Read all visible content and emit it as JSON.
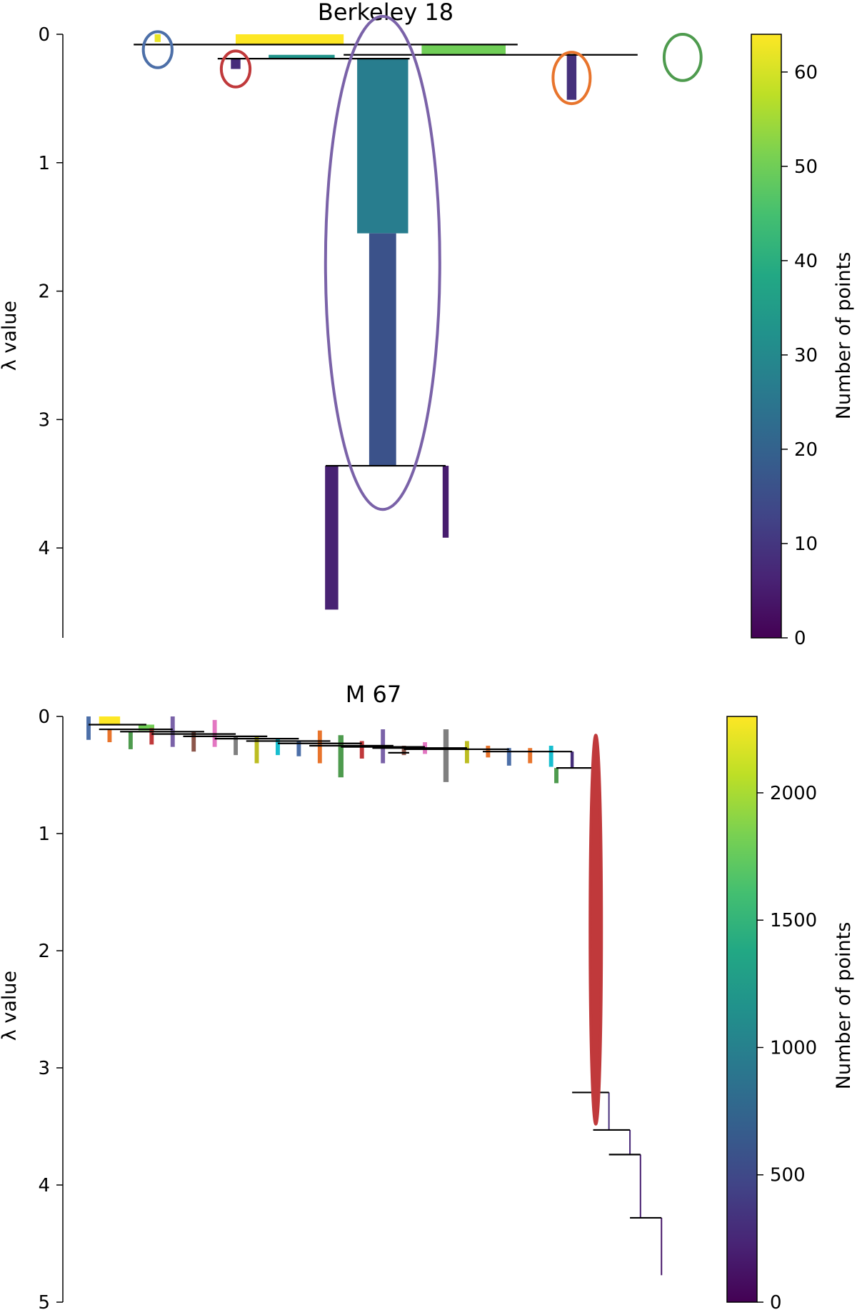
{
  "chart_data": [
    {
      "type": "condensed-tree",
      "title": "Berkeley 18",
      "ylabel": "λ value",
      "ylim": [
        0,
        4.7
      ],
      "yticks": [
        0,
        1,
        2,
        3,
        4
      ],
      "y_inverted": true,
      "colorbar": {
        "label": "Number of points",
        "range": [
          0,
          64
        ],
        "ticks": [
          0,
          10,
          20,
          30,
          40,
          50,
          60
        ],
        "colormap": "viridis"
      },
      "splits": [
        {
          "lambda": 0.08,
          "x_from": 0.08,
          "x_to": 0.72
        },
        {
          "lambda": 0.16,
          "x_from": 0.43,
          "x_to": 0.92
        },
        {
          "lambda": 0.19,
          "x_from": 0.22,
          "x_to": 0.54
        },
        {
          "lambda": 3.36,
          "x_from": 0.4,
          "x_to": 0.6
        }
      ],
      "branches": [
        {
          "x": 0.12,
          "lambda_start": 0.0,
          "lambda_end": 0.06,
          "points": 62,
          "width": 0.01
        },
        {
          "x": 0.34,
          "lambda_start": 0.0,
          "lambda_end": 0.08,
          "points": 64,
          "width": 0.18
        },
        {
          "x": 0.63,
          "lambda_start": 0.08,
          "lambda_end": 0.16,
          "points": 50,
          "width": 0.14
        },
        {
          "x": 0.36,
          "lambda_start": 0.16,
          "lambda_end": 0.19,
          "points": 33,
          "width": 0.11
        },
        {
          "x": 0.25,
          "lambda_start": 0.19,
          "lambda_end": 0.27,
          "points": 8,
          "width": 0.016
        },
        {
          "x": 0.495,
          "lambda_start": 0.19,
          "lambda_end": 1.55,
          "points": 27,
          "width": 0.085
        },
        {
          "x": 0.495,
          "lambda_start": 1.55,
          "lambda_end": 3.36,
          "points": 16,
          "width": 0.045
        },
        {
          "x": 0.81,
          "lambda_start": 0.16,
          "lambda_end": 0.51,
          "points": 9,
          "width": 0.016
        },
        {
          "x": 0.41,
          "lambda_start": 3.36,
          "lambda_end": 4.48,
          "points": 6,
          "width": 0.022
        },
        {
          "x": 0.6,
          "lambda_start": 3.36,
          "lambda_end": 3.92,
          "points": 5,
          "width": 0.01
        }
      ],
      "selected_clusters": [
        {
          "color": "#4c6fa8",
          "x": 0.12,
          "lambda_center": 0.12,
          "lambda_half_span": 0.14
        },
        {
          "color": "#c0393b",
          "x": 0.25,
          "lambda_center": 0.27,
          "lambda_half_span": 0.14
        },
        {
          "color": "#7a62a8",
          "x": 0.495,
          "lambda_center": 1.78,
          "lambda_half_span": 1.92
        },
        {
          "color": "#e8742c",
          "x": 0.81,
          "lambda_center": 0.34,
          "lambda_half_span": 0.2
        },
        {
          "color": "#4e9b4e",
          "x": 0.995,
          "lambda_center": 0.18,
          "lambda_half_span": 0.18
        }
      ]
    },
    {
      "type": "condensed-tree",
      "title": "M 67",
      "ylabel": "λ value",
      "ylim": [
        0,
        5
      ],
      "yticks": [
        0,
        1,
        2,
        3,
        4,
        5
      ],
      "y_inverted": true,
      "colorbar": {
        "label": "Number of points",
        "range": [
          0,
          2300
        ],
        "ticks": [
          0,
          500,
          1000,
          1500,
          2000
        ],
        "colormap": "viridis"
      },
      "splits": [
        {
          "lambda": 0.07,
          "x_from": 0.0,
          "x_to": 0.11
        },
        {
          "lambda": 0.11,
          "x_from": 0.02,
          "x_to": 0.16
        },
        {
          "lambda": 0.13,
          "x_from": 0.06,
          "x_to": 0.22
        },
        {
          "lambda": 0.15,
          "x_from": 0.12,
          "x_to": 0.28
        },
        {
          "lambda": 0.17,
          "x_from": 0.18,
          "x_to": 0.34
        },
        {
          "lambda": 0.19,
          "x_from": 0.24,
          "x_to": 0.4
        },
        {
          "lambda": 0.21,
          "x_from": 0.3,
          "x_to": 0.46
        },
        {
          "lambda": 0.23,
          "x_from": 0.36,
          "x_to": 0.52
        },
        {
          "lambda": 0.25,
          "x_from": 0.42,
          "x_to": 0.58
        },
        {
          "lambda": 0.26,
          "x_from": 0.48,
          "x_to": 0.64
        },
        {
          "lambda": 0.27,
          "x_from": 0.54,
          "x_to": 0.72
        },
        {
          "lambda": 0.28,
          "x_from": 0.6,
          "x_to": 0.8
        },
        {
          "lambda": 0.31,
          "x_from": 0.57,
          "x_to": 0.61
        },
        {
          "lambda": 0.3,
          "x_from": 0.75,
          "x_to": 0.92
        },
        {
          "lambda": 0.44,
          "x_from": 0.89,
          "x_to": 0.96
        },
        {
          "lambda": 3.21,
          "x_from": 0.92,
          "x_to": 0.99
        },
        {
          "lambda": 3.53,
          "x_from": 0.96,
          "x_to": 1.03
        },
        {
          "lambda": 3.74,
          "x_from": 0.99,
          "x_to": 1.05
        },
        {
          "lambda": 4.28,
          "x_from": 1.03,
          "x_to": 1.09
        }
      ],
      "branches": [
        {
          "x": 0.0,
          "lambda_start": 0.0,
          "lambda_end": 0.2,
          "points": 500,
          "width": 0.008,
          "color": "#4c6fa8"
        },
        {
          "x": 0.04,
          "lambda_start": 0.0,
          "lambda_end": 0.07,
          "points": 2300,
          "width": 0.04
        },
        {
          "x": 0.04,
          "lambda_start": 0.11,
          "lambda_end": 0.22,
          "points": 60,
          "width": 0.008,
          "color": "#e8742c"
        },
        {
          "x": 0.08,
          "lambda_start": 0.13,
          "lambda_end": 0.28,
          "points": 60,
          "width": 0.008,
          "color": "#4e9b4e"
        },
        {
          "x": 0.11,
          "lambda_start": 0.07,
          "lambda_end": 0.12,
          "points": 1800,
          "width": 0.03
        },
        {
          "x": 0.12,
          "lambda_start": 0.1,
          "lambda_end": 0.24,
          "points": 60,
          "width": 0.008,
          "color": "#c0393b"
        },
        {
          "x": 0.16,
          "lambda_start": 0.0,
          "lambda_end": 0.26,
          "points": 60,
          "width": 0.008,
          "color": "#7a62a8"
        },
        {
          "x": 0.2,
          "lambda_start": 0.13,
          "lambda_end": 0.3,
          "points": 60,
          "width": 0.008,
          "color": "#8c564b"
        },
        {
          "x": 0.24,
          "lambda_start": 0.03,
          "lambda_end": 0.26,
          "points": 60,
          "width": 0.008,
          "color": "#e377c2"
        },
        {
          "x": 0.28,
          "lambda_start": 0.17,
          "lambda_end": 0.33,
          "points": 60,
          "width": 0.008,
          "color": "#7f7f7f"
        },
        {
          "x": 0.32,
          "lambda_start": 0.17,
          "lambda_end": 0.4,
          "points": 60,
          "width": 0.008,
          "color": "#bcbd22"
        },
        {
          "x": 0.36,
          "lambda_start": 0.19,
          "lambda_end": 0.33,
          "points": 60,
          "width": 0.008,
          "color": "#17becf"
        },
        {
          "x": 0.4,
          "lambda_start": 0.21,
          "lambda_end": 0.34,
          "points": 60,
          "width": 0.008,
          "color": "#4c6fa8"
        },
        {
          "x": 0.44,
          "lambda_start": 0.12,
          "lambda_end": 0.4,
          "points": 60,
          "width": 0.008,
          "color": "#e8742c"
        },
        {
          "x": 0.48,
          "lambda_start": 0.16,
          "lambda_end": 0.52,
          "points": 60,
          "width": 0.01,
          "color": "#4e9b4e"
        },
        {
          "x": 0.52,
          "lambda_start": 0.21,
          "lambda_end": 0.36,
          "points": 60,
          "width": 0.008,
          "color": "#c0393b"
        },
        {
          "x": 0.56,
          "lambda_start": 0.11,
          "lambda_end": 0.4,
          "points": 60,
          "width": 0.008,
          "color": "#7a62a8"
        },
        {
          "x": 0.6,
          "lambda_start": 0.25,
          "lambda_end": 0.33,
          "points": 60,
          "width": 0.008,
          "color": "#8c564b"
        },
        {
          "x": 0.64,
          "lambda_start": 0.22,
          "lambda_end": 0.32,
          "points": 60,
          "width": 0.008,
          "color": "#e377c2"
        },
        {
          "x": 0.68,
          "lambda_start": 0.11,
          "lambda_end": 0.56,
          "points": 60,
          "width": 0.01,
          "color": "#7f7f7f"
        },
        {
          "x": 0.72,
          "lambda_start": 0.21,
          "lambda_end": 0.4,
          "points": 60,
          "width": 0.008,
          "color": "#bcbd22"
        },
        {
          "x": 0.76,
          "lambda_start": 0.25,
          "lambda_end": 0.35,
          "points": 60,
          "width": 0.008,
          "color": "#e8742c"
        },
        {
          "x": 0.8,
          "lambda_start": 0.27,
          "lambda_end": 0.42,
          "points": 60,
          "width": 0.008,
          "color": "#4c6fa8"
        },
        {
          "x": 0.84,
          "lambda_start": 0.27,
          "lambda_end": 0.4,
          "points": 60,
          "width": 0.008,
          "color": "#e8742c"
        },
        {
          "x": 0.88,
          "lambda_start": 0.25,
          "lambda_end": 0.43,
          "points": 60,
          "width": 0.008,
          "color": "#17becf"
        },
        {
          "x": 0.89,
          "lambda_start": 0.44,
          "lambda_end": 0.57,
          "points": 200,
          "width": 0.008,
          "color": "#4e9b4e"
        },
        {
          "x": 0.92,
          "lambda_start": 0.3,
          "lambda_end": 0.44,
          "points": 300,
          "width": 0.006
        },
        {
          "x": 0.96,
          "lambda_start": 0.44,
          "lambda_end": 3.21,
          "points": 400,
          "width": 0.004
        },
        {
          "x": 0.99,
          "lambda_start": 3.21,
          "lambda_end": 3.53,
          "points": 300,
          "width": 0.002
        },
        {
          "x": 1.03,
          "lambda_start": 3.53,
          "lambda_end": 3.74,
          "points": 250,
          "width": 0.002
        },
        {
          "x": 1.05,
          "lambda_start": 3.74,
          "lambda_end": 4.28,
          "points": 200,
          "width": 0.002
        },
        {
          "x": 1.09,
          "lambda_start": 4.28,
          "lambda_end": 4.77,
          "points": 150,
          "width": 0.002
        }
      ],
      "selected_clusters": [
        {
          "color": "#c0393b",
          "x": 0.965,
          "lambda_center": 1.82,
          "lambda_half_span": 1.66
        }
      ]
    }
  ]
}
